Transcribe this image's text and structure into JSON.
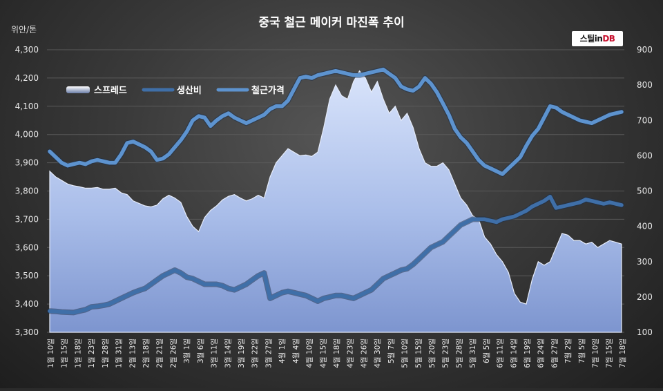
{
  "title": "중국 철근 메이커 마진폭 추이",
  "unit_left": "위안/톤",
  "logo": {
    "text": "스틸in",
    "accent": "DB"
  },
  "chart_data": {
    "type": "area",
    "title": "중국 철근 메이커 마진폭 추이",
    "legend_position": "top-left",
    "y_left": {
      "label": "위안/톤",
      "range": [
        3300,
        4300
      ],
      "ticks": [
        "3,300",
        "3,400",
        "3,500",
        "3,600",
        "3,700",
        "3,800",
        "3,900",
        "4,000",
        "4,100",
        "4,200",
        "4,300"
      ]
    },
    "y_right": {
      "range": [
        100,
        900
      ],
      "ticks": [
        "100",
        "200",
        "300",
        "400",
        "500",
        "600",
        "700",
        "800",
        "900"
      ]
    },
    "x_labels": [
      "1월 10일",
      "1월 15일",
      "1월 18일",
      "1월 23일",
      "1월 28일",
      "1월 31일",
      "2월 13일",
      "2월 18일",
      "2월 21일",
      "2월 26일",
      "3월 1일",
      "3월 6일",
      "3월 11일",
      "3월 14일",
      "3월 19일",
      "3월 22일",
      "3월 27일",
      "4월 1일",
      "4월 4일",
      "4월 10일",
      "4월 15일",
      "4월 18일",
      "4월 23일",
      "4월 26일",
      "4월 30일",
      "5월 7일",
      "5월 10일",
      "5월 15일",
      "5월 20일",
      "5월 23일",
      "5월 28일",
      "5월 31일",
      "6월 5일",
      "6월 11일",
      "6월 14일",
      "6월 19일",
      "6월 24일",
      "6월 27일",
      "7월 2일",
      "7월 5일",
      "7월 10일",
      "7월 15일",
      "7월 18일"
    ],
    "series": [
      {
        "name": "스프레드",
        "axis": "right",
        "style": "area",
        "color": "#b4c4ea",
        "values": [
          556,
          540,
          530,
          520,
          515,
          512,
          508,
          508,
          510,
          505,
          505,
          508,
          495,
          490,
          472,
          465,
          458,
          455,
          460,
          478,
          488,
          480,
          468,
          428,
          400,
          385,
          425,
          445,
          458,
          475,
          485,
          490,
          480,
          472,
          478,
          488,
          480,
          540,
          580,
          600,
          620,
          610,
          600,
          602,
          598,
          610,
          680,
          760,
          800,
          770,
          760,
          810,
          840,
          820,
          780,
          810,
          760,
          720,
          740,
          700,
          720,
          680,
          620,
          580,
          570,
          570,
          580,
          560,
          520,
          480,
          460,
          430,
          420,
          370,
          350,
          320,
          300,
          270,
          210,
          185,
          180,
          250,
          300,
          290,
          300,
          340,
          380,
          375,
          360,
          360,
          350,
          355,
          340,
          350,
          360,
          355,
          350
        ]
      },
      {
        "name": "생산비",
        "axis": "left",
        "style": "line",
        "color": "#3f6fa8",
        "values": [
          3375,
          3374,
          3372,
          3371,
          3370,
          3375,
          3380,
          3390,
          3392,
          3395,
          3400,
          3410,
          3420,
          3430,
          3440,
          3448,
          3455,
          3470,
          3485,
          3500,
          3510,
          3520,
          3510,
          3495,
          3490,
          3480,
          3470,
          3470,
          3470,
          3465,
          3455,
          3450,
          3460,
          3470,
          3485,
          3500,
          3510,
          3420,
          3430,
          3440,
          3445,
          3440,
          3435,
          3430,
          3420,
          3410,
          3420,
          3425,
          3430,
          3430,
          3425,
          3420,
          3430,
          3440,
          3450,
          3470,
          3490,
          3500,
          3510,
          3520,
          3525,
          3540,
          3560,
          3580,
          3600,
          3610,
          3620,
          3640,
          3660,
          3680,
          3690,
          3700,
          3700,
          3700,
          3695,
          3690,
          3700,
          3705,
          3710,
          3720,
          3730,
          3745,
          3755,
          3765,
          3780,
          3740,
          3745,
          3750,
          3755,
          3760,
          3770,
          3765,
          3760,
          3755,
          3760,
          3755,
          3750
        ]
      },
      {
        "name": "철근가격",
        "axis": "left",
        "style": "line",
        "color": "#5d93cf",
        "values": [
          3940,
          3920,
          3900,
          3890,
          3895,
          3900,
          3895,
          3905,
          3910,
          3905,
          3900,
          3900,
          3930,
          3970,
          3975,
          3965,
          3955,
          3940,
          3910,
          3915,
          3930,
          3955,
          3980,
          4010,
          4050,
          4065,
          4060,
          4030,
          4050,
          4065,
          4075,
          4060,
          4050,
          4040,
          4050,
          4060,
          4070,
          4090,
          4100,
          4100,
          4120,
          4160,
          4200,
          4205,
          4200,
          4210,
          4215,
          4220,
          4225,
          4220,
          4215,
          4210,
          4210,
          4215,
          4220,
          4225,
          4230,
          4215,
          4200,
          4170,
          4160,
          4155,
          4170,
          4200,
          4180,
          4150,
          4110,
          4070,
          4020,
          3990,
          3970,
          3940,
          3910,
          3890,
          3880,
          3870,
          3860,
          3880,
          3900,
          3920,
          3960,
          3995,
          4020,
          4060,
          4100,
          4095,
          4080,
          4070,
          4060,
          4050,
          4045,
          4040,
          4050,
          4060,
          4070,
          4075,
          4080
        ]
      }
    ]
  }
}
